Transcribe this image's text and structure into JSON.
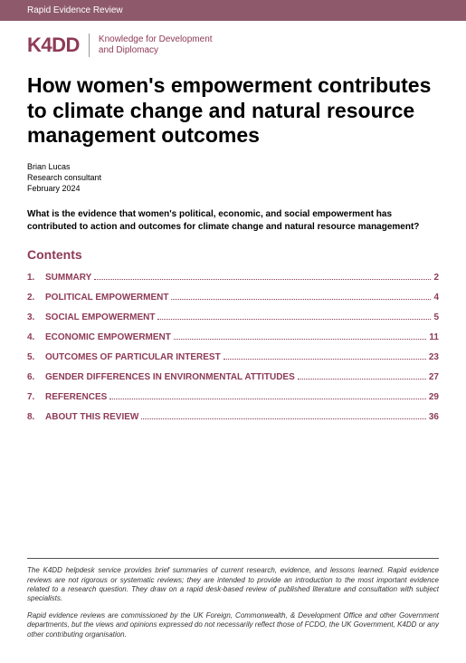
{
  "colors": {
    "brand": "#8e3a56",
    "headerbar": "#8e5a6b",
    "text": "#000000",
    "footer_text": "#333333"
  },
  "header": {
    "series": "Rapid Evidence Review"
  },
  "logo": {
    "mark": "K4DD",
    "tagline_l1": "Knowledge for Development",
    "tagline_l2": "and Diplomacy"
  },
  "title": "How women's empowerment contributes to climate change and natural resource management outcomes",
  "author": {
    "name": "Brian Lucas",
    "role": "Research consultant",
    "date": "February 2024"
  },
  "question": "What is the evidence that women's political, economic, and social empowerment has contributed to action and outcomes for climate change and natural resource management?",
  "contents_heading": "Contents",
  "toc": [
    {
      "num": "1.",
      "label": "SUMMARY",
      "page": "2"
    },
    {
      "num": "2.",
      "label": "POLITICAL EMPOWERMENT",
      "page": "4"
    },
    {
      "num": "3.",
      "label": "SOCIAL EMPOWERMENT",
      "page": "5"
    },
    {
      "num": "4.",
      "label": "ECONOMIC EMPOWERMENT",
      "page": "11"
    },
    {
      "num": "5.",
      "label": "OUTCOMES OF PARTICULAR INTEREST",
      "page": "23"
    },
    {
      "num": "6.",
      "label": "GENDER DIFFERENCES IN ENVIRONMENTAL ATTITUDES",
      "page": "27"
    },
    {
      "num": "7.",
      "label": "REFERENCES",
      "page": "29"
    },
    {
      "num": "8.",
      "label": "ABOUT THIS REVIEW",
      "page": "36"
    }
  ],
  "footer": {
    "p1": "The K4DD helpdesk service provides brief summaries of current research, evidence, and lessons learned. Rapid evidence reviews are not rigorous or systematic reviews; they are intended to provide an introduction to the most important evidence related to a research question. They draw on a rapid desk-based review of published literature and consultation with subject specialists.",
    "p2": "Rapid evidence reviews are commissioned by the UK Foreign, Commonwealth, & Development Office and other Government departments, but the views and opinions expressed do not necessarily reflect those of FCDO, the UK Government, K4DD or any other contributing organisation."
  }
}
